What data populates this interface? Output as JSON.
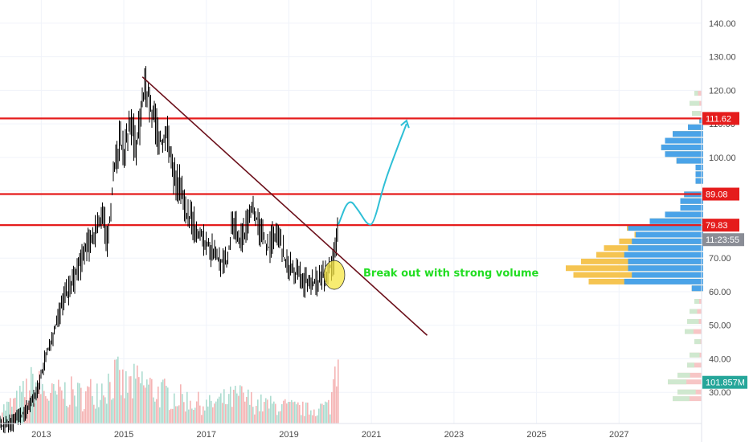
{
  "chart_data": {
    "type": "candlestick",
    "title": "",
    "x_axis": {
      "ticks": [
        "2013",
        "2015",
        "2017",
        "2019",
        "2021",
        "2023",
        "2025",
        "2027"
      ]
    },
    "y_axis": {
      "ticks": [
        "30.00",
        "40.00",
        "50.00",
        "60.00",
        "70.00",
        "80.00",
        "90.00",
        "100.00",
        "110.00",
        "120.00",
        "130.00",
        "140.00"
      ],
      "range": [
        20,
        145
      ]
    },
    "price_series": [
      [
        2012.0,
        20
      ],
      [
        2012.3,
        21
      ],
      [
        2012.6,
        24
      ],
      [
        2012.9,
        30
      ],
      [
        2013.1,
        40
      ],
      [
        2013.3,
        48
      ],
      [
        2013.5,
        56
      ],
      [
        2013.8,
        64
      ],
      [
        2014.0,
        70
      ],
      [
        2014.3,
        78
      ],
      [
        2014.5,
        84
      ],
      [
        2014.6,
        74
      ],
      [
        2014.75,
        95
      ],
      [
        2014.9,
        105
      ],
      [
        2015.0,
        100
      ],
      [
        2015.15,
        110
      ],
      [
        2015.3,
        104
      ],
      [
        2015.5,
        120
      ],
      [
        2015.6,
        118
      ],
      [
        2015.75,
        110
      ],
      [
        2015.9,
        104
      ],
      [
        2016.05,
        108
      ],
      [
        2016.2,
        95
      ],
      [
        2016.35,
        92
      ],
      [
        2016.5,
        84
      ],
      [
        2016.7,
        80
      ],
      [
        2016.9,
        76
      ],
      [
        2017.1,
        73
      ],
      [
        2017.3,
        70
      ],
      [
        2017.5,
        68
      ],
      [
        2017.65,
        82
      ],
      [
        2017.8,
        75
      ],
      [
        2017.95,
        78
      ],
      [
        2018.1,
        87
      ],
      [
        2018.3,
        78
      ],
      [
        2018.5,
        73
      ],
      [
        2018.7,
        78
      ],
      [
        2018.9,
        70
      ],
      [
        2019.1,
        66
      ],
      [
        2019.3,
        64
      ],
      [
        2019.5,
        62
      ],
      [
        2019.7,
        63
      ],
      [
        2019.9,
        65
      ],
      [
        2020.1,
        70
      ],
      [
        2020.2,
        80
      ]
    ],
    "volume_series": [
      [
        2012.0,
        0.15
      ],
      [
        2012.4,
        0.25
      ],
      [
        2012.8,
        0.45
      ],
      [
        2013.2,
        0.3
      ],
      [
        2013.6,
        0.35
      ],
      [
        2014.0,
        0.3
      ],
      [
        2014.4,
        0.4
      ],
      [
        2014.8,
        0.5
      ],
      [
        2015.0,
        0.4
      ],
      [
        2015.4,
        0.45
      ],
      [
        2015.8,
        0.35
      ],
      [
        2016.2,
        0.3
      ],
      [
        2016.6,
        0.25
      ],
      [
        2017.0,
        0.2
      ],
      [
        2017.4,
        0.25
      ],
      [
        2017.8,
        0.3
      ],
      [
        2018.2,
        0.22
      ],
      [
        2018.6,
        0.2
      ],
      [
        2019.0,
        0.18
      ],
      [
        2019.5,
        0.15
      ],
      [
        2020.0,
        0.2
      ],
      [
        2020.15,
        0.85
      ]
    ],
    "horizontal_levels": [
      {
        "value": 111.62,
        "label": "111.62"
      },
      {
        "value": 89.08,
        "label": "89.08"
      },
      {
        "value": 79.83,
        "label": "79.83"
      }
    ],
    "trendline": {
      "start": [
        2015.45,
        124
      ],
      "end": [
        2022.35,
        47
      ]
    },
    "projection_path": [
      [
        2020.2,
        80
      ],
      [
        2020.45,
        88
      ],
      [
        2020.7,
        84
      ],
      [
        2020.9,
        80
      ],
      [
        2021.05,
        80
      ],
      [
        2021.3,
        92
      ],
      [
        2021.6,
        102
      ],
      [
        2021.85,
        110
      ]
    ],
    "breakout_marker": {
      "x": 2020.1,
      "y": 65
    },
    "annotations": [
      "Break out with strong volume"
    ],
    "current_price_label": "11:23:55",
    "current_price_value": 75.5,
    "volume_label": "101.857M",
    "volume_label_value": 33,
    "volume_profile_vap": [
      [
        61,
        0.05,
        0.15
      ],
      [
        63,
        0.35,
        1.5
      ],
      [
        65,
        0.25,
        1.7
      ],
      [
        67,
        0.3,
        1.8
      ],
      [
        69,
        0.3,
        1.6
      ],
      [
        71,
        0.35,
        1.4
      ],
      [
        73,
        0.3,
        1.3
      ],
      [
        75,
        0.25,
        1.1
      ],
      [
        77,
        0.2,
        0.9
      ],
      [
        79,
        0.3,
        1.0
      ],
      [
        81,
        0.2,
        0.7
      ],
      [
        83,
        0.15,
        0.5
      ],
      [
        85,
        0.1,
        0.3
      ],
      [
        87,
        0.1,
        0.3
      ],
      [
        89,
        0.1,
        0.25
      ],
      [
        93,
        0.1,
        0.1
      ],
      [
        95,
        0.05,
        0.1
      ],
      [
        97,
        0.05,
        0.1
      ],
      [
        99,
        0.25,
        0.35
      ],
      [
        101,
        0.3,
        0.5
      ],
      [
        103,
        0.35,
        0.55
      ],
      [
        105,
        0.3,
        0.5
      ],
      [
        107,
        0.3,
        0.4
      ],
      [
        109,
        0.1,
        0.2
      ],
      [
        111,
        0.05,
        0.05
      ]
    ],
    "volume_profile_fade": [
      [
        28,
        0.6
      ],
      [
        30,
        0.5
      ],
      [
        33,
        0.7
      ],
      [
        35,
        0.5
      ],
      [
        38,
        0.3
      ],
      [
        41,
        0.25
      ],
      [
        45,
        0.15
      ],
      [
        48,
        0.35
      ],
      [
        51,
        0.3
      ],
      [
        54,
        0.25
      ],
      [
        57,
        0.15
      ],
      [
        113,
        0.2
      ],
      [
        116,
        0.25
      ],
      [
        119,
        0.15
      ]
    ],
    "colors": {
      "candle": "#000000",
      "level_line": "#e51c1c",
      "level_tag": "#e51c1c",
      "trendline": "#6b0f1a",
      "projection": "#2ebfd6",
      "annotation_text": "#22dd22",
      "breakout_marker_fill": "#f5e642",
      "vp_up": "#4aa3e8",
      "vp_down": "#f5c451",
      "vp_up_faded": "#cfe8cf",
      "vp_down_faded": "#f7c6c6",
      "volume_up": "#9ed6c8",
      "volume_down": "#f3a7a7",
      "price_tag_bg": "#8a8d96",
      "volume_tag_bg": "#26a69a"
    }
  }
}
